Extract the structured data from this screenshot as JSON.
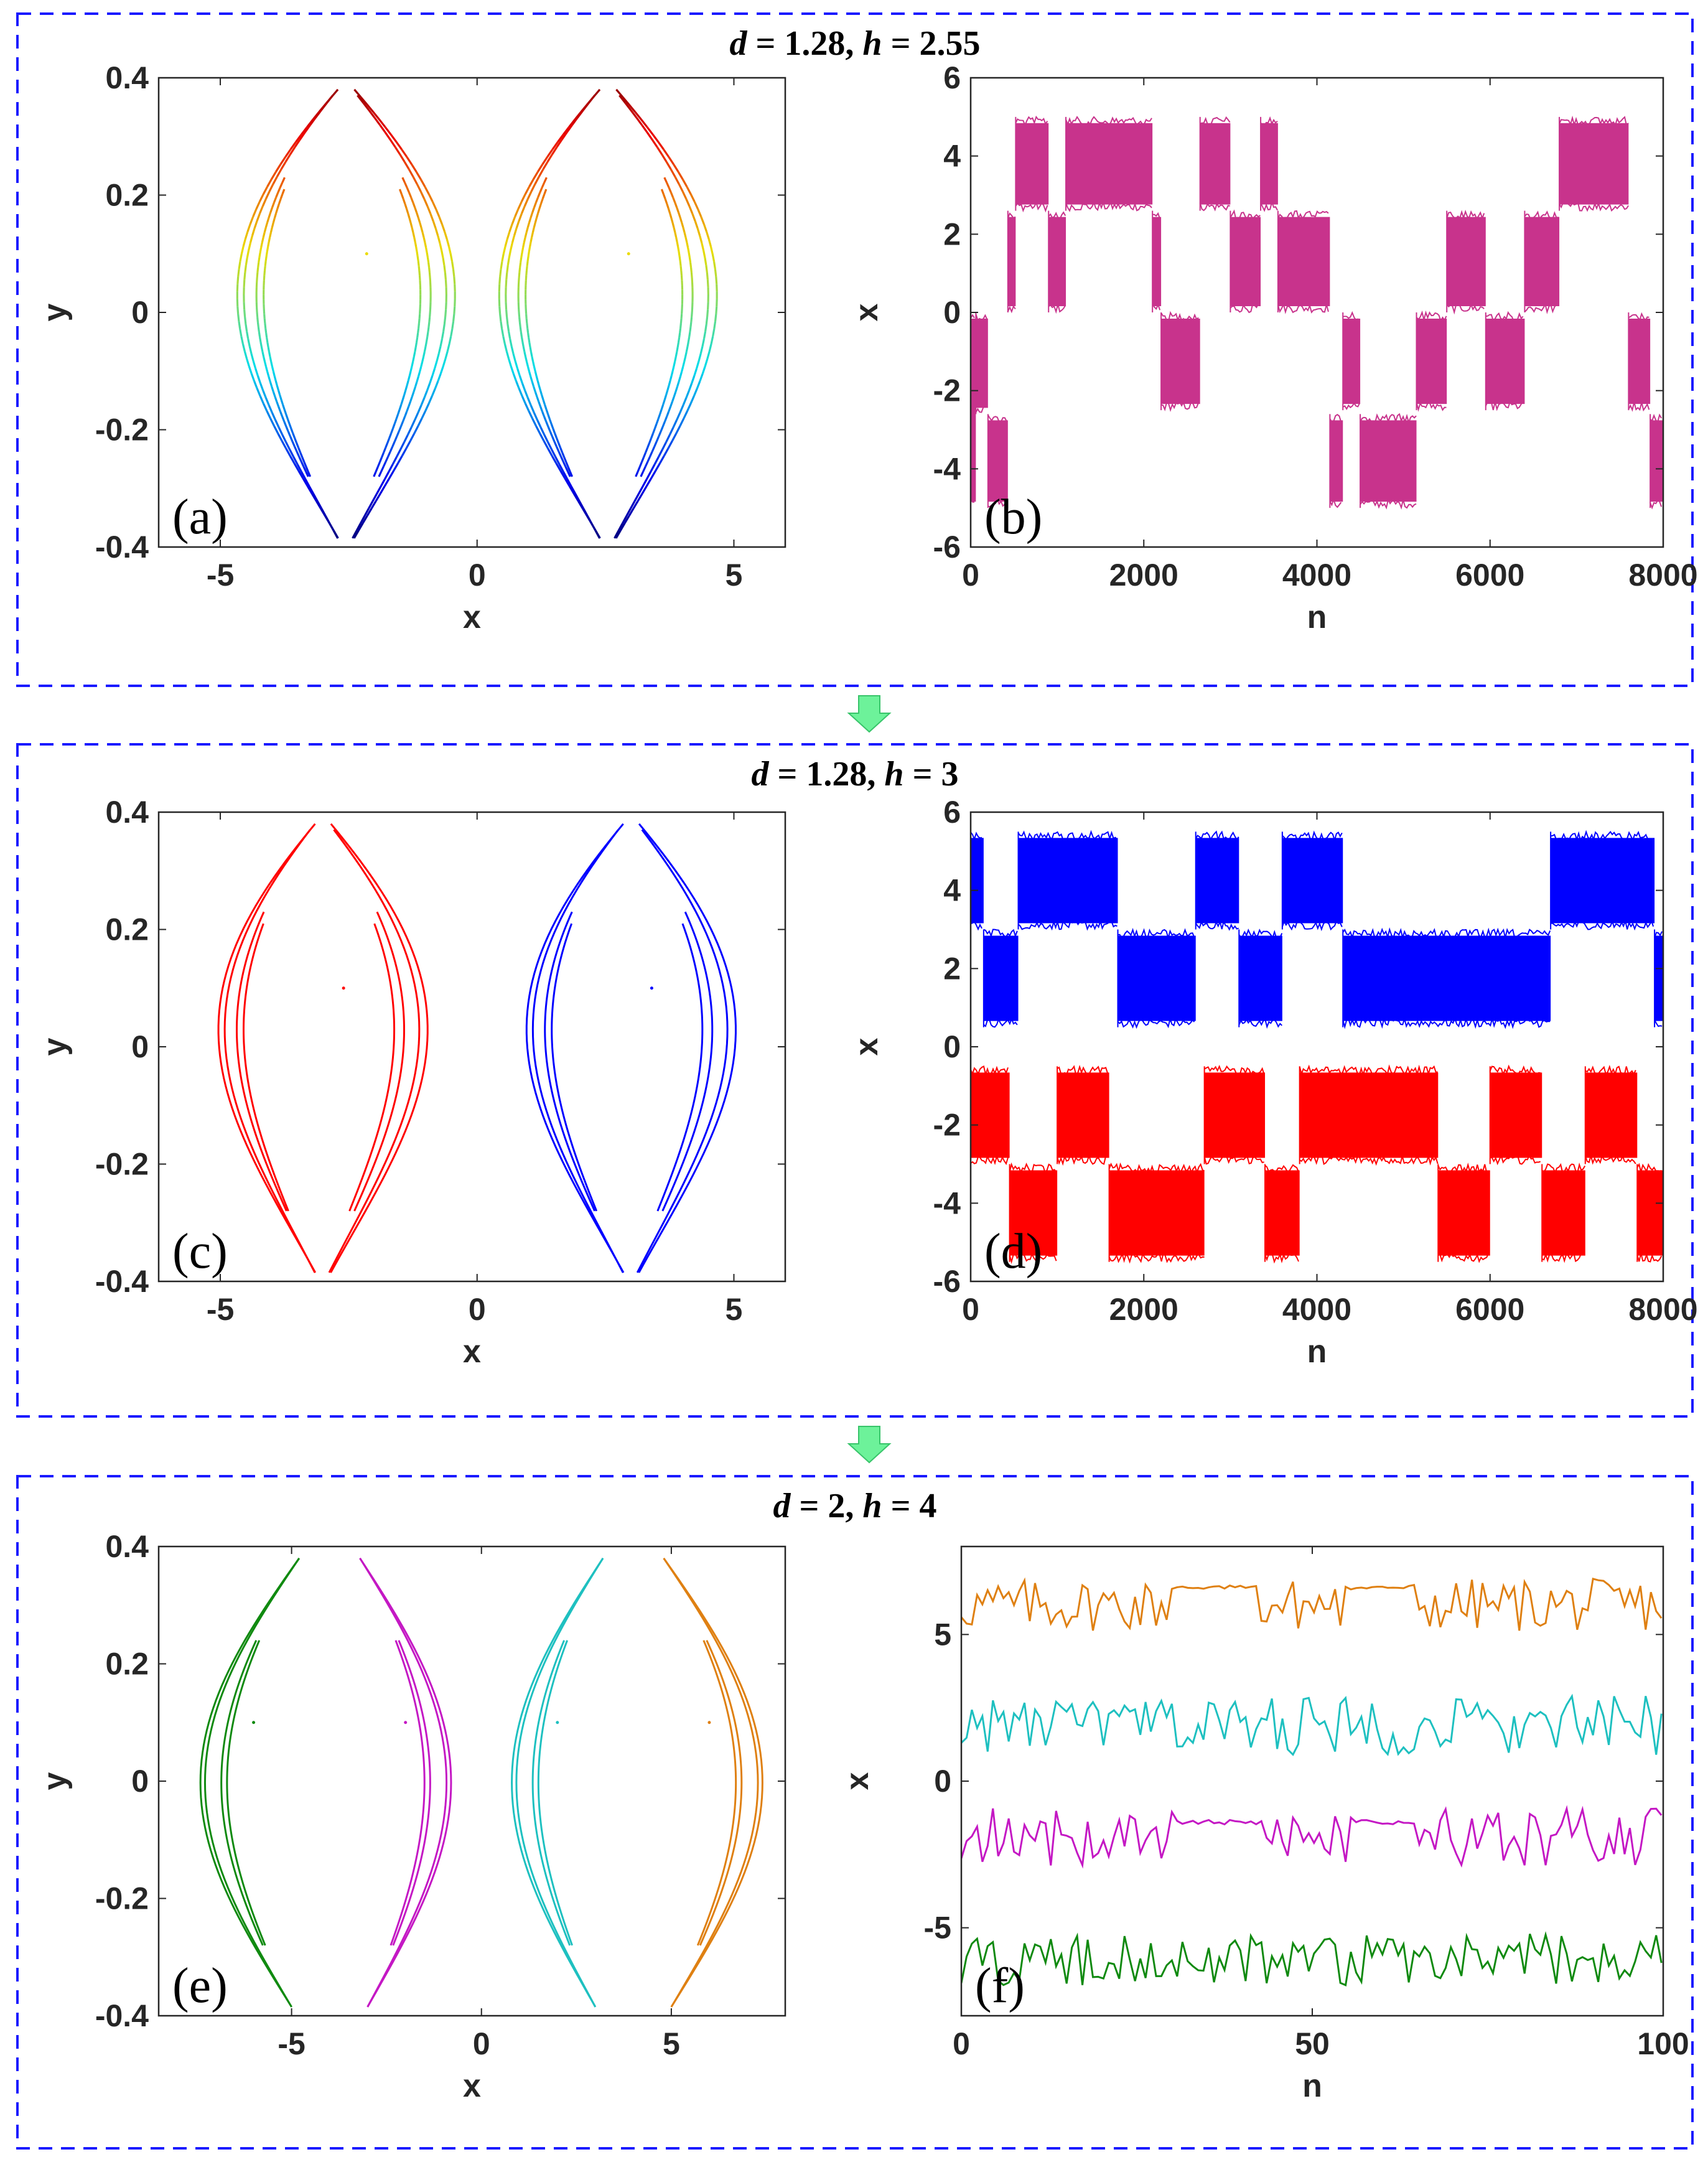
{
  "chart_data": [
    {
      "group_title": {
        "v1": "d",
        "eq1": " = 1.28, ",
        "v2": "h",
        "eq2": " = 2.55"
      },
      "panels": [
        {
          "id": "a",
          "type": "scatter",
          "label": "(a)",
          "xlabel": "x",
          "ylabel": "y",
          "xlim": [
            -6.2,
            6.0
          ],
          "ylim": [
            -0.4,
            0.4
          ],
          "xticks": [
            -5,
            0,
            5
          ],
          "xtick_labels": [
            "-5",
            "0",
            "5"
          ],
          "yticks": [
            -0.4,
            -0.2,
            0,
            0.2,
            0.4
          ],
          "ytick_labels": [
            "-0.4",
            "-0.2",
            "0",
            "0.2",
            "0.4"
          ],
          "coloring": "jet colormap by y",
          "lobes": [
            {
              "center": -2.55,
              "half_width": 2.55,
              "apex_y": 0.38,
              "bottom_y": -0.385
            },
            {
              "center": 2.55,
              "half_width": 2.55,
              "apex_y": 0.38,
              "bottom_y": -0.385
            }
          ]
        },
        {
          "id": "b",
          "type": "line",
          "label": "(b)",
          "xlabel": "n",
          "ylabel": "x",
          "xlim": [
            0,
            8000
          ],
          "ylim": [
            -6,
            6
          ],
          "xticks": [
            0,
            2000,
            4000,
            6000,
            8000
          ],
          "xtick_labels": [
            "0",
            "2000",
            "4000",
            "6000",
            "8000"
          ],
          "yticks": [
            -6,
            -4,
            -2,
            0,
            2,
            4,
            6
          ],
          "ytick_labels": [
            "-6",
            "-4",
            "-2",
            "0",
            "2",
            "4",
            "6"
          ],
          "series": [
            {
              "color": "#c8338c",
              "segments": [
                [
                  0,
                  60,
                  -5,
                  0
                ],
                [
                  60,
                  200,
                  -2.6,
                  0
                ],
                [
                  200,
                  430,
                  -5,
                  -2.6
                ],
                [
                  430,
                  520,
                  0,
                  2.6
                ],
                [
                  520,
                  900,
                  2.6,
                  5
                ],
                [
                  900,
                  1100,
                  0,
                  2.6
                ],
                [
                  1100,
                  2100,
                  2.6,
                  5
                ],
                [
                  2100,
                  2200,
                  0,
                  2.6
                ],
                [
                  2200,
                  2650,
                  -2.5,
                  0
                ],
                [
                  2650,
                  3000,
                  2.6,
                  5
                ],
                [
                  3000,
                  3350,
                  0,
                  2.6
                ],
                [
                  3350,
                  3550,
                  2.6,
                  5
                ],
                [
                  3550,
                  4150,
                  0,
                  2.6
                ],
                [
                  4150,
                  4300,
                  -5,
                  -2.6
                ],
                [
                  4300,
                  4500,
                  -2.5,
                  0
                ],
                [
                  4500,
                  5150,
                  -5,
                  -2.6
                ],
                [
                  5150,
                  5500,
                  -2.5,
                  0
                ],
                [
                  5500,
                  5950,
                  0,
                  2.6
                ],
                [
                  5950,
                  6400,
                  -2.5,
                  0
                ],
                [
                  6400,
                  6800,
                  0,
                  2.6
                ],
                [
                  6800,
                  7600,
                  2.6,
                  5
                ],
                [
                  7600,
                  7850,
                  -2.5,
                  0
                ],
                [
                  7850,
                  8000,
                  -5,
                  -2.6
                ]
              ]
            }
          ]
        }
      ]
    },
    {
      "group_title": {
        "v1": "d",
        "eq1": " = 1.28, ",
        "v2": "h",
        "eq2": " = 3"
      },
      "panels": [
        {
          "id": "c",
          "type": "scatter",
          "label": "(c)",
          "xlabel": "x",
          "ylabel": "y",
          "xlim": [
            -6.2,
            6.0
          ],
          "ylim": [
            -0.4,
            0.4
          ],
          "xticks": [
            -5,
            0,
            5
          ],
          "xtick_labels": [
            "-5",
            "0",
            "5"
          ],
          "yticks": [
            -0.4,
            -0.2,
            0,
            0.2,
            0.4
          ],
          "ytick_labels": [
            "-0.4",
            "-0.2",
            "0",
            "0.2",
            "0.4"
          ],
          "lobes": [
            {
              "center": -3.0,
              "half_width": 2.45,
              "apex_y": 0.38,
              "bottom_y": -0.385,
              "color": "#ff0000"
            },
            {
              "center": 3.0,
              "half_width": 2.45,
              "apex_y": 0.38,
              "bottom_y": -0.385,
              "color": "#0000ff"
            }
          ]
        },
        {
          "id": "d",
          "type": "line",
          "label": "(d)",
          "xlabel": "n",
          "ylabel": "x",
          "xlim": [
            0,
            8000
          ],
          "ylim": [
            -6,
            6
          ],
          "xticks": [
            0,
            2000,
            4000,
            6000,
            8000
          ],
          "xtick_labels": [
            "0",
            "2000",
            "4000",
            "6000",
            "8000"
          ],
          "yticks": [
            -6,
            -4,
            -2,
            0,
            2,
            4,
            6
          ],
          "ytick_labels": [
            "-6",
            "-4",
            "-2",
            "0",
            "2",
            "4",
            "6"
          ],
          "series": [
            {
              "color": "#0000ff",
              "segments": [
                [
                  0,
                  150,
                  3,
                  5.5
                ],
                [
                  150,
                  550,
                  0.5,
                  3
                ],
                [
                  550,
                  1700,
                  3,
                  5.5
                ],
                [
                  1700,
                  2600,
                  0.5,
                  3
                ],
                [
                  2600,
                  3100,
                  3,
                  5.5
                ],
                [
                  3100,
                  3600,
                  0.5,
                  3
                ],
                [
                  3600,
                  4300,
                  3,
                  5.5
                ],
                [
                  4300,
                  6700,
                  0.5,
                  3
                ],
                [
                  6700,
                  7900,
                  3,
                  5.5
                ],
                [
                  7900,
                  8000,
                  0.5,
                  3
                ]
              ]
            },
            {
              "color": "#ff0000",
              "segments": [
                [
                  0,
                  450,
                  -3,
                  -0.5
                ],
                [
                  450,
                  1000,
                  -5.5,
                  -3
                ],
                [
                  1000,
                  1600,
                  -3,
                  -0.5
                ],
                [
                  1600,
                  2700,
                  -5.5,
                  -3
                ],
                [
                  2700,
                  3400,
                  -3,
                  -0.5
                ],
                [
                  3400,
                  3800,
                  -5.5,
                  -3
                ],
                [
                  3800,
                  5400,
                  -3,
                  -0.5
                ],
                [
                  5400,
                  6000,
                  -5.5,
                  -3
                ],
                [
                  6000,
                  6600,
                  -3,
                  -0.5
                ],
                [
                  6600,
                  7100,
                  -5.5,
                  -3
                ],
                [
                  7100,
                  7700,
                  -3,
                  -0.5
                ],
                [
                  7700,
                  8000,
                  -5.5,
                  -3
                ]
              ]
            }
          ]
        }
      ]
    },
    {
      "group_title": {
        "v1": "d",
        "eq1": " = 2, ",
        "v2": "h",
        "eq2": " = 4"
      },
      "panels": [
        {
          "id": "e",
          "type": "scatter",
          "label": "(e)",
          "xlabel": "x",
          "ylabel": "y",
          "xlim": [
            -8.5,
            8.0
          ],
          "ylim": [
            -0.4,
            0.4
          ],
          "xticks": [
            -5,
            0,
            5
          ],
          "xtick_labels": [
            "-5",
            "0",
            "5"
          ],
          "yticks": [
            -0.4,
            -0.2,
            0,
            0.2,
            0.4
          ],
          "ytick_labels": [
            "-0.4",
            "-0.2",
            "0",
            "0.2",
            "0.4"
          ],
          "arcs": [
            {
              "dir": "left",
              "top_x": -4.8,
              "bottom_x": -5.0,
              "bulge_x": -7.4,
              "color": "#108a10"
            },
            {
              "dir": "right",
              "top_x": -3.2,
              "bottom_x": -3.0,
              "bulge_x": -0.8,
              "color": "#c418c4"
            },
            {
              "dir": "left",
              "top_x": 3.2,
              "bottom_x": 3.0,
              "bulge_x": 0.8,
              "color": "#1ec0c0"
            },
            {
              "dir": "right",
              "top_x": 4.8,
              "bottom_x": 5.0,
              "bulge_x": 7.4,
              "color": "#df8012"
            }
          ]
        },
        {
          "id": "f",
          "type": "line",
          "label": "(f)",
          "xlabel": "n",
          "ylabel": "x",
          "xlim": [
            0,
            100
          ],
          "ylim": [
            -8,
            8
          ],
          "xticks": [
            0,
            50,
            100
          ],
          "xtick_labels": [
            "0",
            "50",
            "100"
          ],
          "yticks": [
            -5,
            0,
            5
          ],
          "ytick_labels": [
            "-5",
            "0",
            "5"
          ],
          "series": [
            {
              "color": "#df8012",
              "base": 6.0,
              "amp": 0.9,
              "flat": [
                [
                  30,
                  42,
                  6.6
                ],
                [
                  56,
                  64,
                  6.6
                ]
              ]
            },
            {
              "color": "#1ec0c0",
              "base": 1.9,
              "amp": 1.0,
              "flat": []
            },
            {
              "color": "#c418c4",
              "base": -1.9,
              "amp": 1.0,
              "flat": [
                [
                  31,
                  43,
                  -1.4
                ],
                [
                  56,
                  64,
                  -1.4
                ]
              ]
            },
            {
              "color": "#108a10",
              "base": -6.1,
              "amp": 0.9,
              "flat": []
            }
          ]
        }
      ]
    }
  ]
}
